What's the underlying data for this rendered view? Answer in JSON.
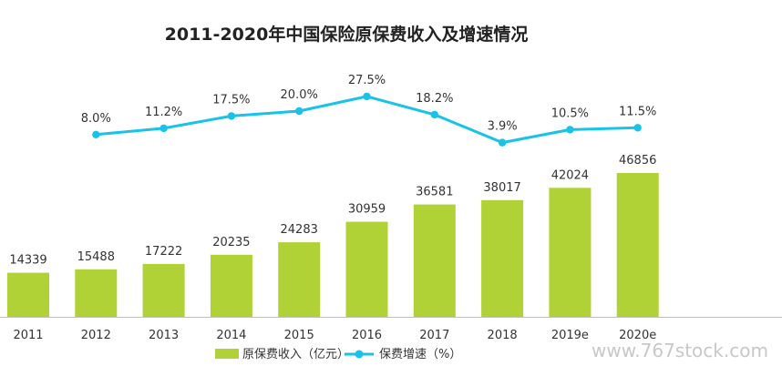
{
  "chart_data": {
    "type": "bar",
    "title": "2011-2020年中国保险原保费收入及增速情况",
    "categories": [
      "2011",
      "2012",
      "2013",
      "2014",
      "2015",
      "2016",
      "2017",
      "2018",
      "2019e",
      "2020e"
    ],
    "series": [
      {
        "name": "原保费收入（亿元）",
        "type": "bar",
        "values": [
          14339,
          15488,
          17222,
          20235,
          24283,
          30959,
          36581,
          38017,
          42024,
          46856
        ],
        "labels": [
          "14339",
          "15488",
          "17222",
          "20235",
          "24283",
          "30959",
          "36581",
          "38017",
          "42024",
          "46856"
        ]
      },
      {
        "name": "保费增速（%）",
        "type": "line",
        "values": [
          null,
          8.0,
          11.2,
          17.5,
          20.0,
          27.5,
          18.2,
          3.9,
          10.5,
          11.5
        ],
        "labels": [
          null,
          "8.0%",
          "11.2%",
          "17.5%",
          "20.0%",
          "27.5%",
          "18.2%",
          "3.9%",
          "10.5%",
          "11.5%"
        ]
      }
    ],
    "xlabel": "",
    "ylabel": "",
    "grid": false,
    "legend": "bottom-center",
    "colors": {
      "bar": "#b1d236",
      "line": "#19c2e8",
      "text": "#333333",
      "axis": "#bfbfbf"
    }
  },
  "watermark": "www.767stock.com"
}
